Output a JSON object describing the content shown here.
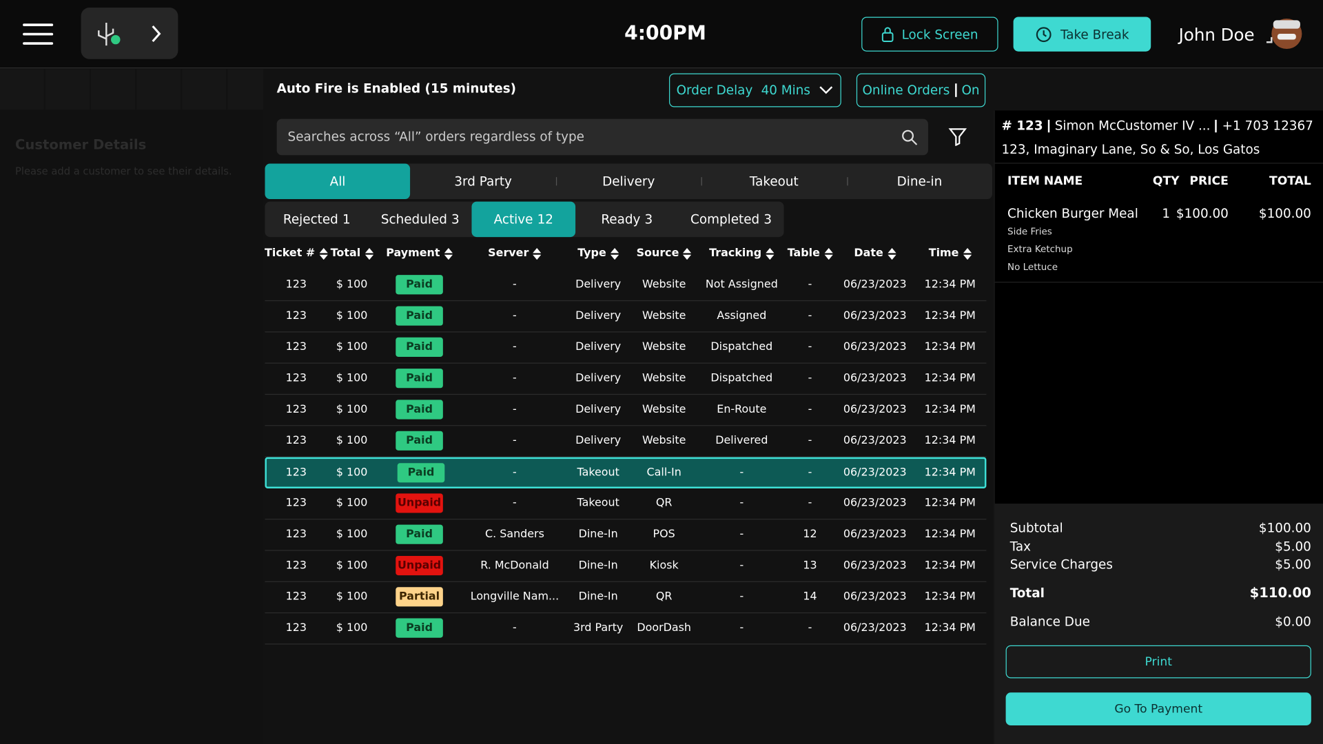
{
  "header": {
    "time": "4:00PM",
    "lock_screen": "Lock Screen",
    "take_break": "Take Break",
    "user_name": "John Doe"
  },
  "sidebar": {
    "title": "Customer Details",
    "hint": "Please add a customer to see their details."
  },
  "toolbar": {
    "auto_fire": "Auto Fire is Enabled (15 minutes)",
    "order_delay_label": "Order Delay",
    "order_delay_value": "40 Mins",
    "online_orders_label": "Online Orders",
    "online_orders_status": "On",
    "search_placeholder": "Searches across “All” orders regardless of type"
  },
  "type_tabs": {
    "items": [
      "All",
      "3rd Party",
      "Delivery",
      "Takeout",
      "Dine-in"
    ],
    "selected": 0
  },
  "status_tabs": {
    "items": [
      {
        "label": "Rejected",
        "count": "1"
      },
      {
        "label": "Scheduled",
        "count": "3"
      },
      {
        "label": "Active",
        "count": "12"
      },
      {
        "label": "Ready",
        "count": "3"
      },
      {
        "label": "Completed",
        "count": "3"
      }
    ],
    "selected": 2
  },
  "table": {
    "columns": [
      "Ticket #",
      "Total",
      "Payment",
      "Server",
      "Type",
      "Source",
      "Tracking",
      "Table",
      "Date",
      "Time"
    ],
    "payment_colors": {
      "Paid": {
        "bg": "#2fc982",
        "fg": "#0b3d22"
      },
      "Unpaid": {
        "bg": "#e3130f",
        "fg": "#5a0000"
      },
      "Partial": {
        "bg": "#fdd38a",
        "fg": "#3d2600"
      }
    },
    "selected_row": 6,
    "rows": [
      [
        "123",
        "$ 100",
        "Paid",
        "-",
        "Delivery",
        "Website",
        "Not Assigned",
        "-",
        "06/23/2023",
        "12:34 PM"
      ],
      [
        "123",
        "$ 100",
        "Paid",
        "-",
        "Delivery",
        "Website",
        "Assigned",
        "-",
        "06/23/2023",
        "12:34 PM"
      ],
      [
        "123",
        "$ 100",
        "Paid",
        "-",
        "Delivery",
        "Website",
        "Dispatched",
        "-",
        "06/23/2023",
        "12:34 PM"
      ],
      [
        "123",
        "$ 100",
        "Paid",
        "-",
        "Delivery",
        "Website",
        "Dispatched",
        "-",
        "06/23/2023",
        "12:34 PM"
      ],
      [
        "123",
        "$ 100",
        "Paid",
        "-",
        "Delivery",
        "Website",
        "En-Route",
        "-",
        "06/23/2023",
        "12:34 PM"
      ],
      [
        "123",
        "$ 100",
        "Paid",
        "-",
        "Delivery",
        "Website",
        "Delivered",
        "-",
        "06/23/2023",
        "12:34 PM"
      ],
      [
        "123",
        "$ 100",
        "Paid",
        "-",
        "Takeout",
        "Call-In",
        "-",
        "-",
        "06/23/2023",
        "12:34 PM"
      ],
      [
        "123",
        "$ 100",
        "Unpaid",
        "-",
        "Takeout",
        "QR",
        "-",
        "-",
        "06/23/2023",
        "12:34 PM"
      ],
      [
        "123",
        "$ 100",
        "Paid",
        "C. Sanders",
        "Dine-In",
        "POS",
        "-",
        "12",
        "06/23/2023",
        "12:34 PM"
      ],
      [
        "123",
        "$ 100",
        "Unpaid",
        "R. McDonald",
        "Dine-In",
        "Kiosk",
        "-",
        "13",
        "06/23/2023",
        "12:34 PM"
      ],
      [
        "123",
        "$ 100",
        "Partial",
        "Longville Nam...",
        "Dine-In",
        "QR",
        "-",
        "14",
        "06/23/2023",
        "12:34 PM"
      ],
      [
        "123",
        "$ 100",
        "Paid",
        "-",
        "3rd Party",
        "DoorDash",
        "-",
        "-",
        "06/23/2023",
        "12:34 PM"
      ]
    ]
  },
  "order": {
    "ticket": "# 123",
    "customer": "Simon McCustomer IV ...",
    "phone": "+1 703 12367",
    "address": "123, Imaginary Lane, So & So, Los Gatos",
    "columns": [
      "ITEM NAME",
      "QTY",
      "PRICE",
      "TOTAL"
    ],
    "items": [
      {
        "name": "Chicken Burger Meal",
        "qty": "1",
        "price": "$100.00",
        "total": "$100.00",
        "modifiers": [
          "Side Fries",
          "Extra Ketchup",
          "No Lettuce"
        ]
      }
    ],
    "summary": [
      {
        "label": "Subtotal",
        "value": "$100.00"
      },
      {
        "label": "Tax",
        "value": "$5.00"
      },
      {
        "label": "Service Charges",
        "value": "$5.00"
      }
    ],
    "total": {
      "label": "Total",
      "value": "$110.00"
    },
    "balance": {
      "label": "Balance Due",
      "value": "$0.00"
    },
    "print": "Print",
    "payment": "Go To Payment"
  }
}
